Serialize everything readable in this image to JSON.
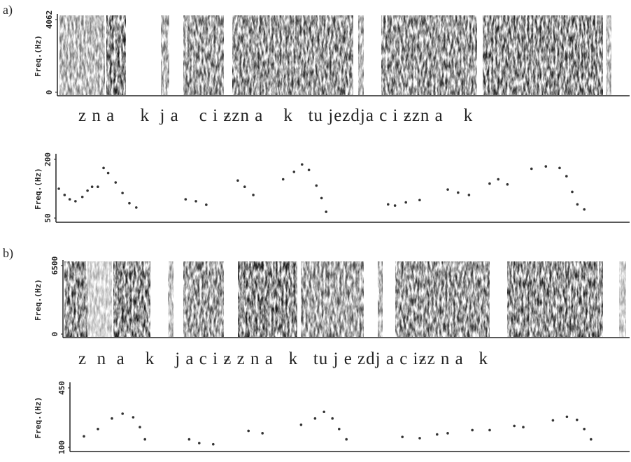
{
  "panels": [
    "a)",
    "b)"
  ],
  "segments": [
    "z n a     k  j a    c i ƶzn a    k   tu jezdja c i ƶzn a    k",
    "z  n  a    k    j a c i ƶ z n a   k   tu j e zdj a c iƶz n a   k"
  ],
  "chart_data": [
    {
      "type": "spectrogram",
      "ylabel": "Freq.(Hz)",
      "ylim": [
        0,
        4062
      ],
      "yticks": [
        0,
        4062
      ]
    },
    {
      "type": "scatter",
      "ylabel": "Freq.(Hz)",
      "xlim": [
        0,
        100
      ],
      "ylim": [
        50,
        200
      ],
      "yticks": [
        50,
        200
      ],
      "color": "#333",
      "x": [
        0.5,
        1.5,
        2.4,
        3.4,
        4.6,
        5.5,
        6.3,
        7.3,
        8.3,
        9.1,
        10.4,
        11.6,
        12.8,
        14.0,
        22.6,
        24.4,
        26.2,
        31.7,
        32.9,
        34.4,
        39.6,
        41.5,
        42.9,
        44.1,
        45.4,
        46.3,
        47.1,
        57.9,
        59.1,
        61.0,
        63.4,
        68.3,
        70.1,
        72.0,
        75.6,
        77.1,
        78.7,
        82.9,
        85.4,
        87.8,
        89.0,
        90.0,
        90.9,
        92.1
      ],
      "values": [
        125,
        109,
        98,
        93,
        104,
        120,
        130,
        130,
        178,
        165,
        141,
        114,
        88,
        77,
        98,
        93,
        84,
        146,
        130,
        109,
        149,
        168,
        187,
        173,
        133,
        101,
        66,
        85,
        82,
        90,
        96,
        123,
        115,
        109,
        138,
        149,
        136,
        176,
        182,
        178,
        157,
        117,
        85,
        72
      ]
    },
    {
      "type": "spectrogram",
      "ylabel": "Freq.(Hz)",
      "ylim": [
        0,
        6500
      ],
      "yticks": [
        0,
        6500
      ]
    },
    {
      "type": "scatter",
      "ylabel": "Freq.(Hz)",
      "xlim": [
        0,
        100
      ],
      "ylim": [
        100,
        450
      ],
      "yticks": [
        100,
        450
      ],
      "color": "#333",
      "x": [
        2.5,
        5.0,
        7.5,
        9.4,
        11.3,
        12.5,
        13.4,
        21.3,
        23.1,
        25.6,
        31.9,
        34.4,
        41.3,
        43.8,
        45.4,
        46.9,
        48.1,
        49.4,
        59.4,
        62.5,
        65.6,
        67.5,
        71.9,
        75.0,
        79.4,
        81.0,
        86.3,
        88.8,
        90.6,
        91.9,
        93.1
      ],
      "values": [
        165,
        208,
        270,
        298,
        277,
        219,
        147,
        147,
        125,
        118,
        197,
        183,
        233,
        270,
        309,
        270,
        208,
        147,
        161,
        154,
        176,
        183,
        201,
        201,
        226,
        219,
        259,
        280,
        262,
        208,
        147
      ]
    }
  ]
}
